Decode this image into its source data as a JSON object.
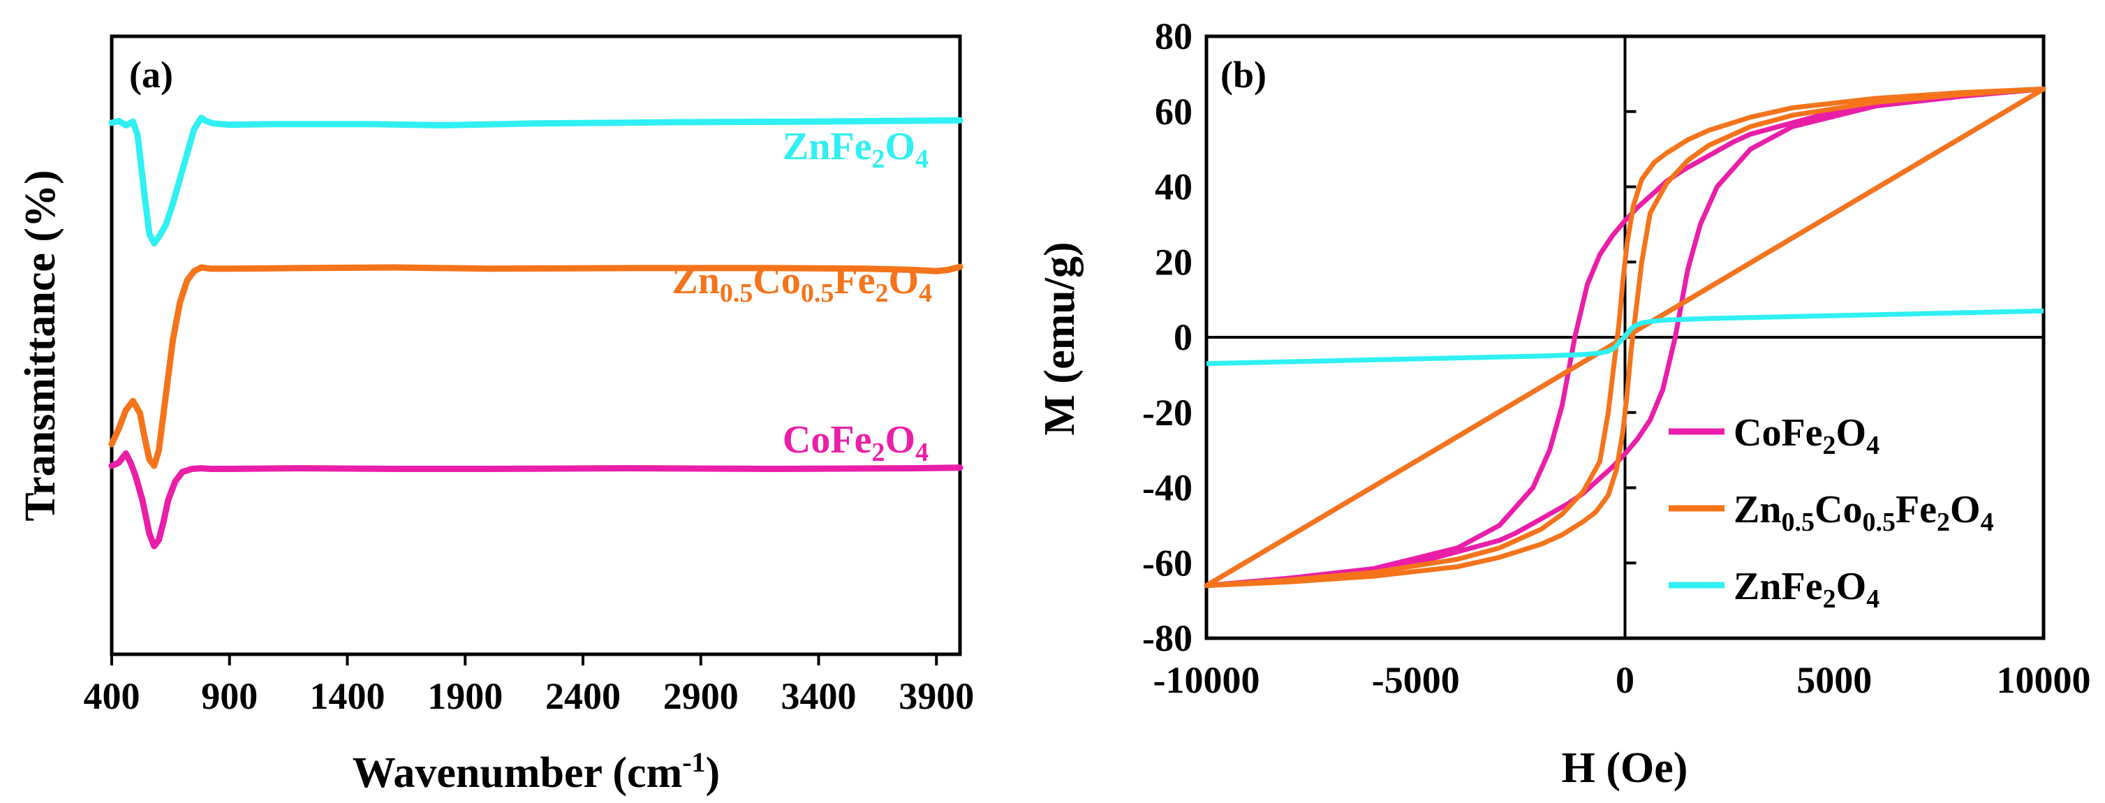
{
  "colors": {
    "CoFe2O4": "#ea1ea8",
    "ZnCoFe2O4": "#f5741b",
    "ZnFe2O4": "#2ff0f3",
    "axis": "#000000"
  },
  "chart_data": [
    {
      "panel": "(a)",
      "type": "line",
      "xlabel_main": "Wavenumber (cm",
      "xlabel_sup": "-1",
      "xlabel_end": ")",
      "ylabel": "Transmittance (%)",
      "xlim": [
        400,
        4000
      ],
      "xticks": [
        "400",
        "900",
        "1400",
        "1900",
        "2400",
        "2900",
        "3400",
        "3900"
      ],
      "yticks": [],
      "series": [
        {
          "key": "ZnFe2O4",
          "label": {
            "p1": "ZnFe",
            "s1": "2",
            "p2": "O",
            "s2": "4"
          },
          "x": [
            400,
            430,
            460,
            490,
            510,
            540,
            560,
            580,
            600,
            630,
            660,
            690,
            720,
            750,
            780,
            800,
            830,
            900,
            1100,
            1500,
            1800,
            2200,
            2800,
            3400,
            4000
          ],
          "y": [
            86,
            86.3,
            85.6,
            86.2,
            84,
            74,
            68,
            66.5,
            67.5,
            69.5,
            73,
            77,
            81,
            85,
            86.8,
            86.3,
            85.9,
            85.7,
            85.8,
            85.8,
            85.6,
            85.9,
            86.1,
            86.2,
            86.4
          ]
        },
        {
          "key": "ZnCoFe2O4",
          "label": {
            "p1": "Zn",
            "s1": "0.5",
            "p2": "Co",
            "s2": "0.5",
            "p3": "Fe",
            "s3": "2",
            "p4": "O",
            "s4": "4"
          },
          "x": [
            400,
            430,
            460,
            490,
            520,
            540,
            560,
            580,
            600,
            630,
            660,
            690,
            720,
            750,
            780,
            820,
            900,
            1200,
            1600,
            2000,
            2600,
            3200,
            3600,
            3800,
            3900,
            3950,
            4000
          ],
          "y": [
            34,
            36.5,
            39.5,
            41,
            39,
            35,
            31.5,
            30.5,
            33,
            42,
            51,
            57,
            60.5,
            62,
            62.6,
            62.4,
            62.4,
            62.5,
            62.6,
            62.4,
            62.5,
            62.5,
            62.4,
            62.2,
            62.0,
            62.2,
            62.7
          ]
        },
        {
          "key": "CoFe2O4",
          "label": {
            "p1": "CoFe",
            "s1": "2",
            "p2": "O",
            "s2": "4"
          },
          "x": [
            400,
            430,
            460,
            480,
            500,
            530,
            560,
            580,
            600,
            620,
            640,
            670,
            700,
            740,
            780,
            820,
            900,
            1200,
            1600,
            2000,
            2600,
            3200,
            3800,
            4000
          ],
          "y": [
            30.5,
            31,
            32.5,
            31,
            29,
            25,
            19.5,
            17.5,
            18.5,
            21.5,
            25,
            28,
            29.5,
            30,
            30.1,
            30,
            30,
            30.1,
            30,
            30,
            30.1,
            30,
            30.1,
            30.2
          ]
        }
      ]
    },
    {
      "panel": "(b)",
      "type": "line",
      "xlabel": "H (Oe)",
      "ylabel": "M (emu/g)",
      "xlim": [
        -10000,
        10000
      ],
      "ylim": [
        -80,
        80
      ],
      "xticks": [
        "-10000",
        "-5000",
        "0",
        "5000",
        "10000"
      ],
      "yticks": [
        "-80",
        "-60",
        "-40",
        "-20",
        "0",
        "20",
        "40",
        "60",
        "80"
      ],
      "legend_position": "lower-right",
      "series": [
        {
          "key": "CoFe2O4",
          "label": {
            "p1": "CoFe",
            "s1": "2",
            "p2": "O",
            "s2": "4"
          },
          "hc": 1200,
          "ms": 66,
          "x": [
            -10000,
            -8000,
            -6000,
            -4000,
            -3000,
            -2200,
            -1800,
            -1500,
            -1200,
            -900,
            -600,
            -300,
            0,
            300,
            600,
            800,
            1000,
            1200,
            1400,
            1800,
            2200,
            2600,
            3000,
            4000,
            5000,
            6000,
            8000,
            10000
          ],
          "y": [
            -66,
            -64,
            -61.5,
            -56,
            -50,
            -40,
            -30,
            -18,
            0,
            14,
            22,
            27,
            31,
            34.5,
            37.5,
            39.5,
            41.5,
            43,
            44.5,
            47,
            49.5,
            52,
            54,
            57,
            60,
            62,
            64.5,
            66
          ]
        },
        {
          "key": "ZnCoFe2O4",
          "label": {
            "p1": "Zn",
            "s1": "0.5",
            "p2": "Co",
            "s2": "0.5",
            "p3": "Fe",
            "s3": "2",
            "p4": "O",
            "s4": "4"
          },
          "hc": 150,
          "ms": 66,
          "x": [
            -10000,
            -8000,
            -6000,
            -4000,
            -3000,
            -2000,
            -1500,
            -1000,
            -600,
            -400,
            -250,
            -150,
            -50,
            50,
            200,
            400,
            700,
            1000,
            1500,
            2000,
            3000,
            4000,
            6000,
            8000,
            10000
          ],
          "y": [
            -66,
            -64.5,
            -62.5,
            -59,
            -56,
            -51,
            -47,
            -41,
            -33,
            -20,
            -6,
            3,
            15,
            25,
            35,
            42,
            46.5,
            49,
            52.5,
            55,
            58.5,
            61,
            63.5,
            65,
            66
          ]
        },
        {
          "key": "ZnFe2O4",
          "label": {
            "p1": "ZnFe",
            "s1": "2",
            "p2": "O",
            "s2": "4"
          },
          "x": [
            -10000,
            -8000,
            -6000,
            -4000,
            -2000,
            -1000,
            -600,
            -400,
            -250,
            -150,
            -50,
            0,
            50,
            150,
            250,
            400,
            600,
            1000,
            2000,
            4000,
            6000,
            8000,
            10000
          ],
          "y": [
            -7,
            -6.5,
            -6,
            -5.5,
            -5,
            -4.6,
            -4.2,
            -3.7,
            -2.8,
            -1.5,
            -0.3,
            0.3,
            1,
            2.3,
            3.1,
            3.8,
            4.2,
            4.6,
            5,
            5.5,
            6,
            6.5,
            7
          ]
        }
      ]
    }
  ]
}
